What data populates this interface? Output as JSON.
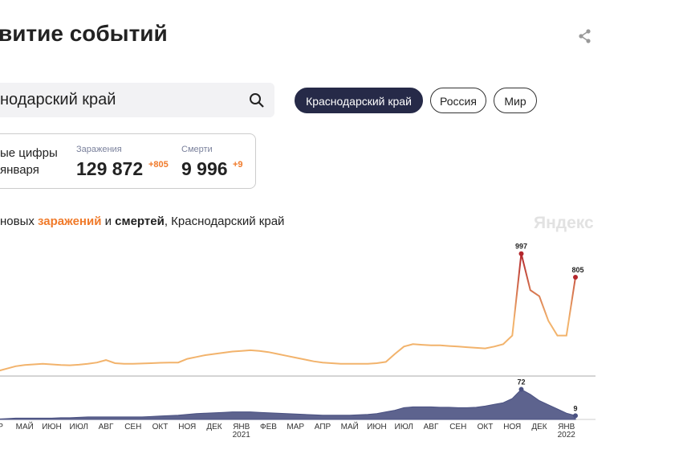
{
  "header": {
    "title": "витие событий"
  },
  "search": {
    "value": "нодарский край"
  },
  "tabs": [
    "Краснодарский край",
    "Россия",
    "Мир"
  ],
  "stats": {
    "caption": [
      "ые цифры",
      "января"
    ],
    "cases": {
      "label": "Заражения",
      "value": "129 872",
      "delta": "+805"
    },
    "deaths": {
      "label": "Смерти",
      "value": "9 996",
      "delta": "+9"
    }
  },
  "chart_data": {
    "type": "line",
    "caption": [
      "новых ",
      "заражений",
      " и ",
      "смертей",
      ", Краснодарский край"
    ],
    "watermark": "Яндекс",
    "categories": [
      "ПР",
      null,
      null,
      "МАЙ",
      null,
      null,
      "ИЮН",
      null,
      null,
      "ИЮЛ",
      null,
      null,
      "АВГ",
      null,
      null,
      "СЕН",
      null,
      null,
      "ОКТ",
      null,
      null,
      "НОЯ",
      null,
      null,
      "ДЕК",
      null,
      null,
      "ЯНВ\n2021",
      null,
      null,
      "ФЕВ",
      null,
      null,
      "МАР",
      null,
      null,
      "АПР",
      null,
      null,
      "МАЙ",
      null,
      null,
      "ИЮН",
      null,
      null,
      "ИЮЛ",
      null,
      null,
      "АВГ",
      null,
      null,
      "СЕН",
      null,
      null,
      "ОКТ",
      null,
      null,
      "НОЯ",
      null,
      null,
      "ДЕК",
      null,
      null,
      "ЯНВ\n2022",
      null
    ],
    "series": [
      {
        "name": "заражений",
        "color": "#f2b36c",
        "peak_color": "#b3262c",
        "ylim": [
          0,
          1100
        ],
        "values": [
          40,
          60,
          80,
          90,
          95,
          100,
          95,
          90,
          88,
          92,
          100,
          110,
          130,
          105,
          100,
          100,
          102,
          105,
          108,
          110,
          110,
          140,
          155,
          170,
          180,
          190,
          200,
          205,
          210,
          205,
          195,
          180,
          165,
          150,
          135,
          120,
          110,
          105,
          100,
          100,
          100,
          100,
          105,
          115,
          180,
          240,
          260,
          255,
          250,
          250,
          245,
          240,
          235,
          230,
          225,
          240,
          260,
          330,
          997,
          700,
          650,
          450,
          330,
          330,
          805
        ]
      },
      {
        "name": "смертей",
        "color": "#4b5282",
        "ylim": [
          0,
          100
        ],
        "values": [
          1,
          2,
          3,
          3,
          3,
          3,
          3,
          4,
          4,
          5,
          6,
          6,
          6,
          6,
          6,
          6,
          6,
          7,
          8,
          9,
          10,
          12,
          14,
          15,
          16,
          17,
          18,
          18,
          18,
          17,
          16,
          15,
          14,
          13,
          12,
          11,
          10,
          10,
          10,
          10,
          11,
          12,
          14,
          18,
          22,
          28,
          30,
          30,
          30,
          29,
          29,
          28,
          28,
          29,
          32,
          36,
          40,
          50,
          72,
          60,
          45,
          35,
          25,
          15,
          9
        ]
      }
    ]
  }
}
